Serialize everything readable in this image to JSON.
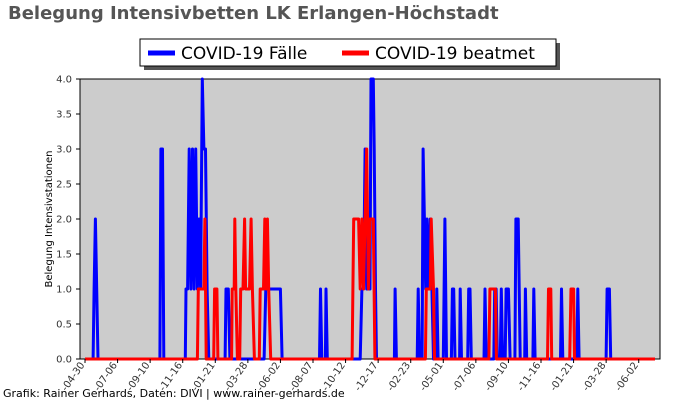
{
  "credit": "Grafik: Rainer Gerhards, Daten: DIVI | www.rainer-gerhards.de",
  "chart_data": {
    "type": "line",
    "title": "Belegung Intensivbetten LK Erlangen-Höchstadt",
    "xlabel": "",
    "ylabel": "Belegung Intensivstationen",
    "ylim": [
      0,
      4
    ],
    "yticks": [
      "0.0",
      "0.5",
      "1.0",
      "1.5",
      "2.0",
      "2.5",
      "3.0",
      "3.5",
      "4.0"
    ],
    "xtick_labels": [
      "-04-30",
      "-07-06",
      "-09-10",
      "-11-16",
      "-01-21",
      "-03-28",
      "-06-02",
      "-08-07",
      "-10-12",
      "-12-17",
      "-02-23",
      "-05-01",
      "-07-06",
      "-09-10",
      "-11-16",
      "-01-21",
      "-03-28",
      "-06-02"
    ],
    "x_range": [
      0,
      17.5
    ],
    "grid": false,
    "background": "#cccccc",
    "legend_position": "top-center",
    "series": [
      {
        "name": "COVID-19 Fälle",
        "color": "#0000ff",
        "points": [
          [
            0,
            0
          ],
          [
            0.25,
            0
          ],
          [
            0.28,
            1
          ],
          [
            0.32,
            2
          ],
          [
            0.36,
            1
          ],
          [
            0.4,
            0
          ],
          [
            2.3,
            0
          ],
          [
            2.33,
            3
          ],
          [
            2.38,
            3
          ],
          [
            2.42,
            0
          ],
          [
            3.08,
            0
          ],
          [
            3.1,
            1
          ],
          [
            3.15,
            1
          ],
          [
            3.2,
            3
          ],
          [
            3.25,
            1
          ],
          [
            3.3,
            3
          ],
          [
            3.35,
            1
          ],
          [
            3.4,
            3
          ],
          [
            3.45,
            1
          ],
          [
            3.5,
            2
          ],
          [
            3.55,
            1
          ],
          [
            3.6,
            4
          ],
          [
            3.65,
            3
          ],
          [
            3.7,
            3
          ],
          [
            3.75,
            1
          ],
          [
            3.8,
            0
          ],
          [
            4.3,
            0
          ],
          [
            4.33,
            1
          ],
          [
            4.4,
            1
          ],
          [
            4.45,
            0
          ],
          [
            5.5,
            0
          ],
          [
            5.55,
            1
          ],
          [
            5.6,
            1
          ],
          [
            6.0,
            1
          ],
          [
            6.05,
            0
          ],
          [
            7.2,
            0
          ],
          [
            7.23,
            1
          ],
          [
            7.27,
            0
          ],
          [
            7.38,
            0
          ],
          [
            7.4,
            1
          ],
          [
            7.44,
            0
          ],
          [
            8.45,
            0
          ],
          [
            8.5,
            1
          ],
          [
            8.55,
            1
          ],
          [
            8.6,
            3
          ],
          [
            8.65,
            1
          ],
          [
            8.75,
            1
          ],
          [
            8.78,
            4
          ],
          [
            8.85,
            4
          ],
          [
            8.88,
            3
          ],
          [
            8.92,
            1
          ],
          [
            8.95,
            0
          ],
          [
            9.5,
            0
          ],
          [
            9.52,
            1
          ],
          [
            9.56,
            0
          ],
          [
            10.2,
            0
          ],
          [
            10.23,
            1
          ],
          [
            10.27,
            0
          ],
          [
            10.35,
            0
          ],
          [
            10.38,
            3
          ],
          [
            10.42,
            2
          ],
          [
            10.46,
            1
          ],
          [
            10.5,
            2
          ],
          [
            10.55,
            1
          ],
          [
            10.6,
            2
          ],
          [
            10.65,
            1
          ],
          [
            10.7,
            0
          ],
          [
            10.78,
            0
          ],
          [
            10.8,
            1
          ],
          [
            10.84,
            0
          ],
          [
            11.0,
            0
          ],
          [
            11.05,
            2
          ],
          [
            11.1,
            0
          ],
          [
            11.25,
            0
          ],
          [
            11.28,
            1
          ],
          [
            11.32,
            1
          ],
          [
            11.36,
            0
          ],
          [
            11.5,
            0
          ],
          [
            11.52,
            1
          ],
          [
            11.56,
            0
          ],
          [
            11.75,
            0
          ],
          [
            11.78,
            1
          ],
          [
            11.82,
            1
          ],
          [
            11.86,
            0
          ],
          [
            12.25,
            0
          ],
          [
            12.28,
            1
          ],
          [
            12.32,
            0
          ],
          [
            12.55,
            0
          ],
          [
            12.58,
            1
          ],
          [
            12.62,
            1
          ],
          [
            12.66,
            0
          ],
          [
            12.75,
            0
          ],
          [
            12.78,
            1
          ],
          [
            12.82,
            0
          ],
          [
            12.9,
            0
          ],
          [
            12.93,
            1
          ],
          [
            13.0,
            1
          ],
          [
            13.05,
            0
          ],
          [
            13.2,
            0
          ],
          [
            13.23,
            2
          ],
          [
            13.3,
            2
          ],
          [
            13.33,
            1
          ],
          [
            13.36,
            0
          ],
          [
            13.5,
            0
          ],
          [
            13.52,
            1
          ],
          [
            13.56,
            0
          ],
          [
            13.75,
            0
          ],
          [
            13.78,
            1
          ],
          [
            13.82,
            0
          ],
          [
            14.6,
            0
          ],
          [
            14.63,
            1
          ],
          [
            14.67,
            0
          ],
          [
            15.1,
            0
          ],
          [
            15.13,
            1
          ],
          [
            15.17,
            0
          ],
          [
            16.0,
            0
          ],
          [
            16.03,
            1
          ],
          [
            16.1,
            1
          ],
          [
            16.14,
            0
          ],
          [
            17.5,
            0
          ]
        ]
      },
      {
        "name": "COVID-19 beatmet",
        "color": "#ff0000",
        "points": [
          [
            0,
            0
          ],
          [
            3.45,
            0
          ],
          [
            3.48,
            1
          ],
          [
            3.65,
            1
          ],
          [
            3.68,
            2
          ],
          [
            3.72,
            0
          ],
          [
            3.95,
            0
          ],
          [
            3.98,
            1
          ],
          [
            4.05,
            1
          ],
          [
            4.08,
            0
          ],
          [
            4.5,
            0
          ],
          [
            4.52,
            1
          ],
          [
            4.58,
            1
          ],
          [
            4.6,
            2
          ],
          [
            4.63,
            1
          ],
          [
            4.68,
            0
          ],
          [
            4.75,
            0
          ],
          [
            4.78,
            1
          ],
          [
            4.85,
            1
          ],
          [
            4.9,
            2
          ],
          [
            4.93,
            1
          ],
          [
            5.05,
            1
          ],
          [
            5.1,
            2
          ],
          [
            5.14,
            1
          ],
          [
            5.2,
            0
          ],
          [
            5.35,
            0
          ],
          [
            5.38,
            1
          ],
          [
            5.48,
            1
          ],
          [
            5.52,
            2
          ],
          [
            5.56,
            1
          ],
          [
            5.6,
            2
          ],
          [
            5.64,
            1
          ],
          [
            5.7,
            0
          ],
          [
            8.2,
            0
          ],
          [
            8.25,
            2
          ],
          [
            8.4,
            2
          ],
          [
            8.45,
            1
          ],
          [
            8.5,
            2
          ],
          [
            8.55,
            1
          ],
          [
            8.6,
            2
          ],
          [
            8.65,
            3
          ],
          [
            8.7,
            1
          ],
          [
            8.75,
            2
          ],
          [
            8.85,
            2
          ],
          [
            8.9,
            0
          ],
          [
            10.45,
            0
          ],
          [
            10.48,
            1
          ],
          [
            10.6,
            1
          ],
          [
            10.63,
            2
          ],
          [
            10.7,
            1
          ],
          [
            10.73,
            0
          ],
          [
            12.4,
            0
          ],
          [
            12.43,
            1
          ],
          [
            12.6,
            1
          ],
          [
            12.63,
            0
          ],
          [
            14.2,
            0
          ],
          [
            14.23,
            1
          ],
          [
            14.3,
            1
          ],
          [
            14.33,
            0
          ],
          [
            14.88,
            0
          ],
          [
            14.92,
            1
          ],
          [
            15.0,
            1
          ],
          [
            15.03,
            0
          ],
          [
            17.5,
            0
          ]
        ]
      }
    ]
  }
}
